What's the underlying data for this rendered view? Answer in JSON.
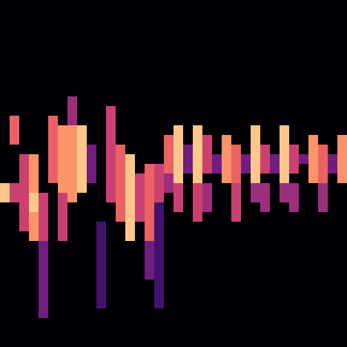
{
  "chart_data": {
    "type": "heatmap",
    "tick_labels": false,
    "grid": false,
    "xlim": [
      -0.5,
      35.5
    ],
    "ylim": [
      35.5,
      -0.5
    ],
    "zlim": [
      0,
      9
    ],
    "cells_by_column": [
      [
        0,
        0,
        0,
        0,
        0,
        0,
        0,
        0,
        0,
        0,
        0,
        0,
        0,
        0,
        0,
        0,
        0,
        0,
        0,
        8,
        8,
        0,
        0,
        0,
        0,
        0,
        0,
        0,
        0,
        0,
        0,
        0,
        0,
        0,
        0,
        0
      ],
      [
        0,
        0,
        0,
        0,
        0,
        0,
        0,
        0,
        0,
        0,
        0,
        0,
        6,
        6,
        6,
        0,
        0,
        0,
        0,
        5,
        5,
        0,
        0,
        0,
        0,
        0,
        0,
        0,
        0,
        0,
        0,
        0,
        0,
        0,
        0,
        0
      ],
      [
        0,
        0,
        0,
        0,
        0,
        0,
        0,
        0,
        0,
        0,
        0,
        0,
        0,
        0,
        0,
        0,
        5,
        5,
        5,
        5,
        5,
        5,
        5,
        5,
        0,
        0,
        0,
        0,
        0,
        0,
        0,
        0,
        0,
        0,
        0,
        0
      ],
      [
        0,
        0,
        0,
        0,
        0,
        0,
        0,
        0,
        0,
        0,
        0,
        0,
        0,
        0,
        0,
        0,
        7,
        7,
        7,
        7,
        8,
        8,
        7,
        7,
        7,
        0,
        0,
        0,
        0,
        0,
        0,
        0,
        0,
        0,
        0,
        0
      ],
      [
        0,
        0,
        0,
        0,
        0,
        0,
        0,
        0,
        0,
        0,
        0,
        0,
        0,
        0,
        0,
        0,
        0,
        0,
        0,
        0,
        5,
        5,
        5,
        5,
        5,
        3,
        3,
        3,
        3,
        3,
        3,
        3,
        3,
        0,
        0,
        0
      ],
      [
        0,
        0,
        0,
        0,
        0,
        0,
        0,
        0,
        0,
        0,
        0,
        0,
        6,
        6,
        6,
        6,
        6,
        6,
        6,
        0,
        0,
        0,
        0,
        0,
        0,
        0,
        0,
        0,
        0,
        0,
        0,
        0,
        0,
        0,
        0,
        0
      ],
      [
        0,
        0,
        0,
        0,
        0,
        0,
        0,
        0,
        0,
        0,
        0,
        0,
        0,
        7,
        7,
        7,
        7,
        7,
        7,
        7,
        5,
        5,
        5,
        5,
        5,
        0,
        0,
        0,
        0,
        0,
        0,
        0,
        0,
        0,
        0,
        0
      ],
      [
        0,
        0,
        0,
        0,
        0,
        0,
        0,
        0,
        0,
        0,
        4,
        4,
        4,
        7,
        7,
        7,
        7,
        7,
        7,
        7,
        7,
        0,
        0,
        0,
        0,
        0,
        0,
        0,
        0,
        0,
        0,
        0,
        0,
        0,
        0,
        0
      ],
      [
        0,
        0,
        0,
        0,
        0,
        0,
        0,
        0,
        0,
        0,
        0,
        0,
        0,
        8,
        8,
        8,
        8,
        8,
        8,
        8,
        0,
        0,
        0,
        0,
        0,
        0,
        0,
        0,
        0,
        0,
        0,
        0,
        0,
        0,
        0,
        0
      ],
      [
        0,
        0,
        0,
        0,
        0,
        0,
        0,
        0,
        0,
        0,
        0,
        0,
        0,
        0,
        0,
        3,
        3,
        3,
        3,
        0,
        0,
        0,
        0,
        0,
        0,
        0,
        0,
        0,
        0,
        0,
        0,
        0,
        0,
        0,
        0,
        0
      ],
      [
        0,
        0,
        0,
        0,
        0,
        0,
        0,
        0,
        0,
        0,
        0,
        0,
        0,
        0,
        0,
        0,
        0,
        0,
        0,
        0,
        0,
        0,
        0,
        2,
        2,
        2,
        2,
        2,
        2,
        2,
        2,
        2,
        0,
        0,
        0,
        0
      ],
      [
        0,
        0,
        0,
        0,
        0,
        0,
        0,
        0,
        0,
        0,
        0,
        5,
        5,
        5,
        5,
        5,
        5,
        5,
        5,
        5,
        5,
        0,
        0,
        0,
        0,
        0,
        0,
        0,
        0,
        0,
        0,
        0,
        0,
        0,
        0,
        0
      ],
      [
        0,
        0,
        0,
        0,
        0,
        0,
        0,
        0,
        0,
        0,
        0,
        0,
        0,
        0,
        0,
        6,
        6,
        6,
        6,
        6,
        6,
        6,
        6,
        0,
        0,
        0,
        0,
        0,
        0,
        0,
        0,
        0,
        0,
        0,
        0,
        0
      ],
      [
        0,
        0,
        0,
        0,
        0,
        0,
        0,
        0,
        0,
        0,
        0,
        0,
        0,
        0,
        0,
        0,
        8,
        8,
        8,
        8,
        8,
        8,
        8,
        8,
        8,
        0,
        0,
        0,
        0,
        0,
        0,
        0,
        0,
        0,
        0,
        0
      ],
      [
        0,
        0,
        0,
        0,
        0,
        0,
        0,
        0,
        0,
        0,
        0,
        0,
        0,
        0,
        0,
        0,
        0,
        0,
        5,
        5,
        5,
        5,
        5,
        0,
        0,
        0,
        0,
        0,
        0,
        0,
        0,
        0,
        0,
        0,
        0,
        0
      ],
      [
        0,
        0,
        0,
        0,
        0,
        0,
        0,
        0,
        0,
        0,
        0,
        0,
        0,
        0,
        0,
        0,
        0,
        6,
        6,
        6,
        6,
        6,
        6,
        6,
        6,
        3,
        3,
        3,
        3,
        0,
        0,
        0,
        0,
        0,
        0,
        0
      ],
      [
        0,
        0,
        0,
        0,
        0,
        0,
        0,
        0,
        0,
        0,
        0,
        0,
        0,
        0,
        0,
        0,
        0,
        5,
        5,
        5,
        5,
        2,
        2,
        2,
        2,
        2,
        2,
        2,
        2,
        2,
        2,
        2,
        0,
        0,
        0,
        0
      ],
      [
        0,
        0,
        0,
        0,
        0,
        0,
        0,
        0,
        0,
        0,
        0,
        0,
        0,
        0,
        6,
        6,
        6,
        6,
        4,
        4,
        0,
        0,
        0,
        0,
        0,
        0,
        0,
        0,
        0,
        0,
        0,
        0,
        0,
        0,
        0,
        0
      ],
      [
        0,
        0,
        0,
        0,
        0,
        0,
        0,
        0,
        0,
        0,
        0,
        0,
        0,
        8,
        8,
        8,
        8,
        8,
        8,
        5,
        5,
        5,
        0,
        0,
        0,
        0,
        0,
        0,
        0,
        0,
        0,
        0,
        0,
        0,
        0,
        0
      ],
      [
        0,
        0,
        0,
        0,
        0,
        0,
        0,
        0,
        0,
        0,
        0,
        0,
        0,
        0,
        0,
        3,
        3,
        3,
        0,
        0,
        0,
        0,
        0,
        0,
        0,
        0,
        0,
        0,
        0,
        0,
        0,
        0,
        0,
        0,
        0,
        0
      ],
      [
        0,
        0,
        0,
        0,
        0,
        0,
        0,
        0,
        0,
        0,
        0,
        0,
        0,
        8,
        8,
        8,
        8,
        8,
        8,
        5,
        5,
        5,
        5,
        0,
        0,
        0,
        0,
        0,
        0,
        0,
        0,
        0,
        0,
        0,
        0,
        0
      ],
      [
        0,
        0,
        0,
        0,
        0,
        0,
        0,
        0,
        0,
        0,
        0,
        0,
        0,
        0,
        5,
        5,
        5,
        5,
        0,
        4,
        4,
        4,
        0,
        0,
        0,
        0,
        0,
        0,
        0,
        0,
        0,
        0,
        0,
        0,
        0,
        0
      ],
      [
        0,
        0,
        0,
        0,
        0,
        0,
        0,
        0,
        0,
        0,
        0,
        0,
        0,
        0,
        0,
        0,
        3,
        3,
        0,
        0,
        0,
        0,
        0,
        0,
        0,
        0,
        0,
        0,
        0,
        0,
        0,
        0,
        0,
        0,
        0,
        0
      ],
      [
        0,
        0,
        0,
        0,
        0,
        0,
        0,
        0,
        0,
        0,
        0,
        0,
        0,
        0,
        7,
        7,
        7,
        7,
        7,
        0,
        0,
        0,
        0,
        0,
        0,
        0,
        0,
        0,
        0,
        0,
        0,
        0,
        0,
        0,
        0,
        0
      ],
      [
        0,
        0,
        0,
        0,
        0,
        0,
        0,
        0,
        0,
        0,
        0,
        0,
        0,
        0,
        0,
        6,
        6,
        6,
        6,
        5,
        5,
        5,
        5,
        0,
        0,
        0,
        0,
        0,
        0,
        0,
        0,
        0,
        0,
        0,
        0,
        0
      ],
      [
        0,
        0,
        0,
        0,
        0,
        0,
        0,
        0,
        0,
        0,
        0,
        0,
        0,
        0,
        0,
        0,
        3,
        3,
        0,
        0,
        0,
        0,
        0,
        0,
        0,
        0,
        0,
        0,
        0,
        0,
        0,
        0,
        0,
        0,
        0,
        0
      ],
      [
        0,
        0,
        0,
        0,
        0,
        0,
        0,
        0,
        0,
        0,
        0,
        0,
        0,
        8,
        8,
        8,
        8,
        8,
        8,
        4,
        4,
        0,
        0,
        0,
        0,
        0,
        0,
        0,
        0,
        0,
        0,
        0,
        0,
        0,
        0,
        0
      ],
      [
        0,
        0,
        0,
        0,
        0,
        0,
        0,
        0,
        0,
        0,
        0,
        0,
        0,
        0,
        0,
        5,
        5,
        5,
        0,
        4,
        4,
        4,
        0,
        0,
        0,
        0,
        0,
        0,
        0,
        0,
        0,
        0,
        0,
        0,
        0,
        0
      ],
      [
        0,
        0,
        0,
        0,
        0,
        0,
        0,
        0,
        0,
        0,
        0,
        0,
        0,
        0,
        0,
        0,
        3,
        3,
        0,
        0,
        0,
        0,
        0,
        0,
        0,
        0,
        0,
        0,
        0,
        0,
        0,
        0,
        0,
        0,
        0,
        0
      ],
      [
        0,
        0,
        0,
        0,
        0,
        0,
        0,
        0,
        0,
        0,
        0,
        0,
        0,
        8,
        8,
        8,
        8,
        8,
        8,
        4,
        4,
        0,
        0,
        0,
        0,
        0,
        0,
        0,
        0,
        0,
        0,
        0,
        0,
        0,
        0,
        0
      ],
      [
        0,
        0,
        0,
        0,
        0,
        0,
        0,
        0,
        0,
        0,
        0,
        0,
        0,
        0,
        0,
        5,
        5,
        5,
        0,
        4,
        4,
        4,
        0,
        0,
        0,
        0,
        0,
        0,
        0,
        0,
        0,
        0,
        0,
        0,
        0,
        0
      ],
      [
        0,
        0,
        0,
        0,
        0,
        0,
        0,
        0,
        0,
        0,
        0,
        0,
        0,
        0,
        0,
        0,
        3,
        0,
        0,
        0,
        0,
        0,
        0,
        0,
        0,
        0,
        0,
        0,
        0,
        0,
        0,
        0,
        0,
        0,
        0,
        0
      ],
      [
        0,
        0,
        0,
        0,
        0,
        0,
        0,
        0,
        0,
        0,
        0,
        0,
        0,
        0,
        7,
        7,
        7,
        7,
        7,
        0,
        0,
        0,
        0,
        0,
        0,
        0,
        0,
        0,
        0,
        0,
        0,
        0,
        0,
        0,
        0,
        0
      ],
      [
        0,
        0,
        0,
        0,
        0,
        0,
        0,
        0,
        0,
        0,
        0,
        0,
        0,
        0,
        0,
        6,
        6,
        6,
        6,
        4,
        4,
        4,
        0,
        0,
        0,
        0,
        0,
        0,
        0,
        0,
        0,
        0,
        0,
        0,
        0,
        0
      ],
      [
        0,
        0,
        0,
        0,
        0,
        0,
        0,
        0,
        0,
        0,
        0,
        0,
        0,
        0,
        0,
        0,
        3,
        3,
        0,
        0,
        0,
        0,
        0,
        0,
        0,
        0,
        0,
        0,
        0,
        0,
        0,
        0,
        0,
        0,
        0,
        0
      ],
      [
        0,
        0,
        0,
        0,
        0,
        0,
        0,
        0,
        0,
        0,
        0,
        0,
        0,
        0,
        7,
        7,
        7,
        7,
        7,
        0,
        0,
        0,
        0,
        0,
        0,
        0,
        0,
        0,
        0,
        0,
        0,
        0,
        0,
        0,
        0,
        0
      ]
    ]
  }
}
